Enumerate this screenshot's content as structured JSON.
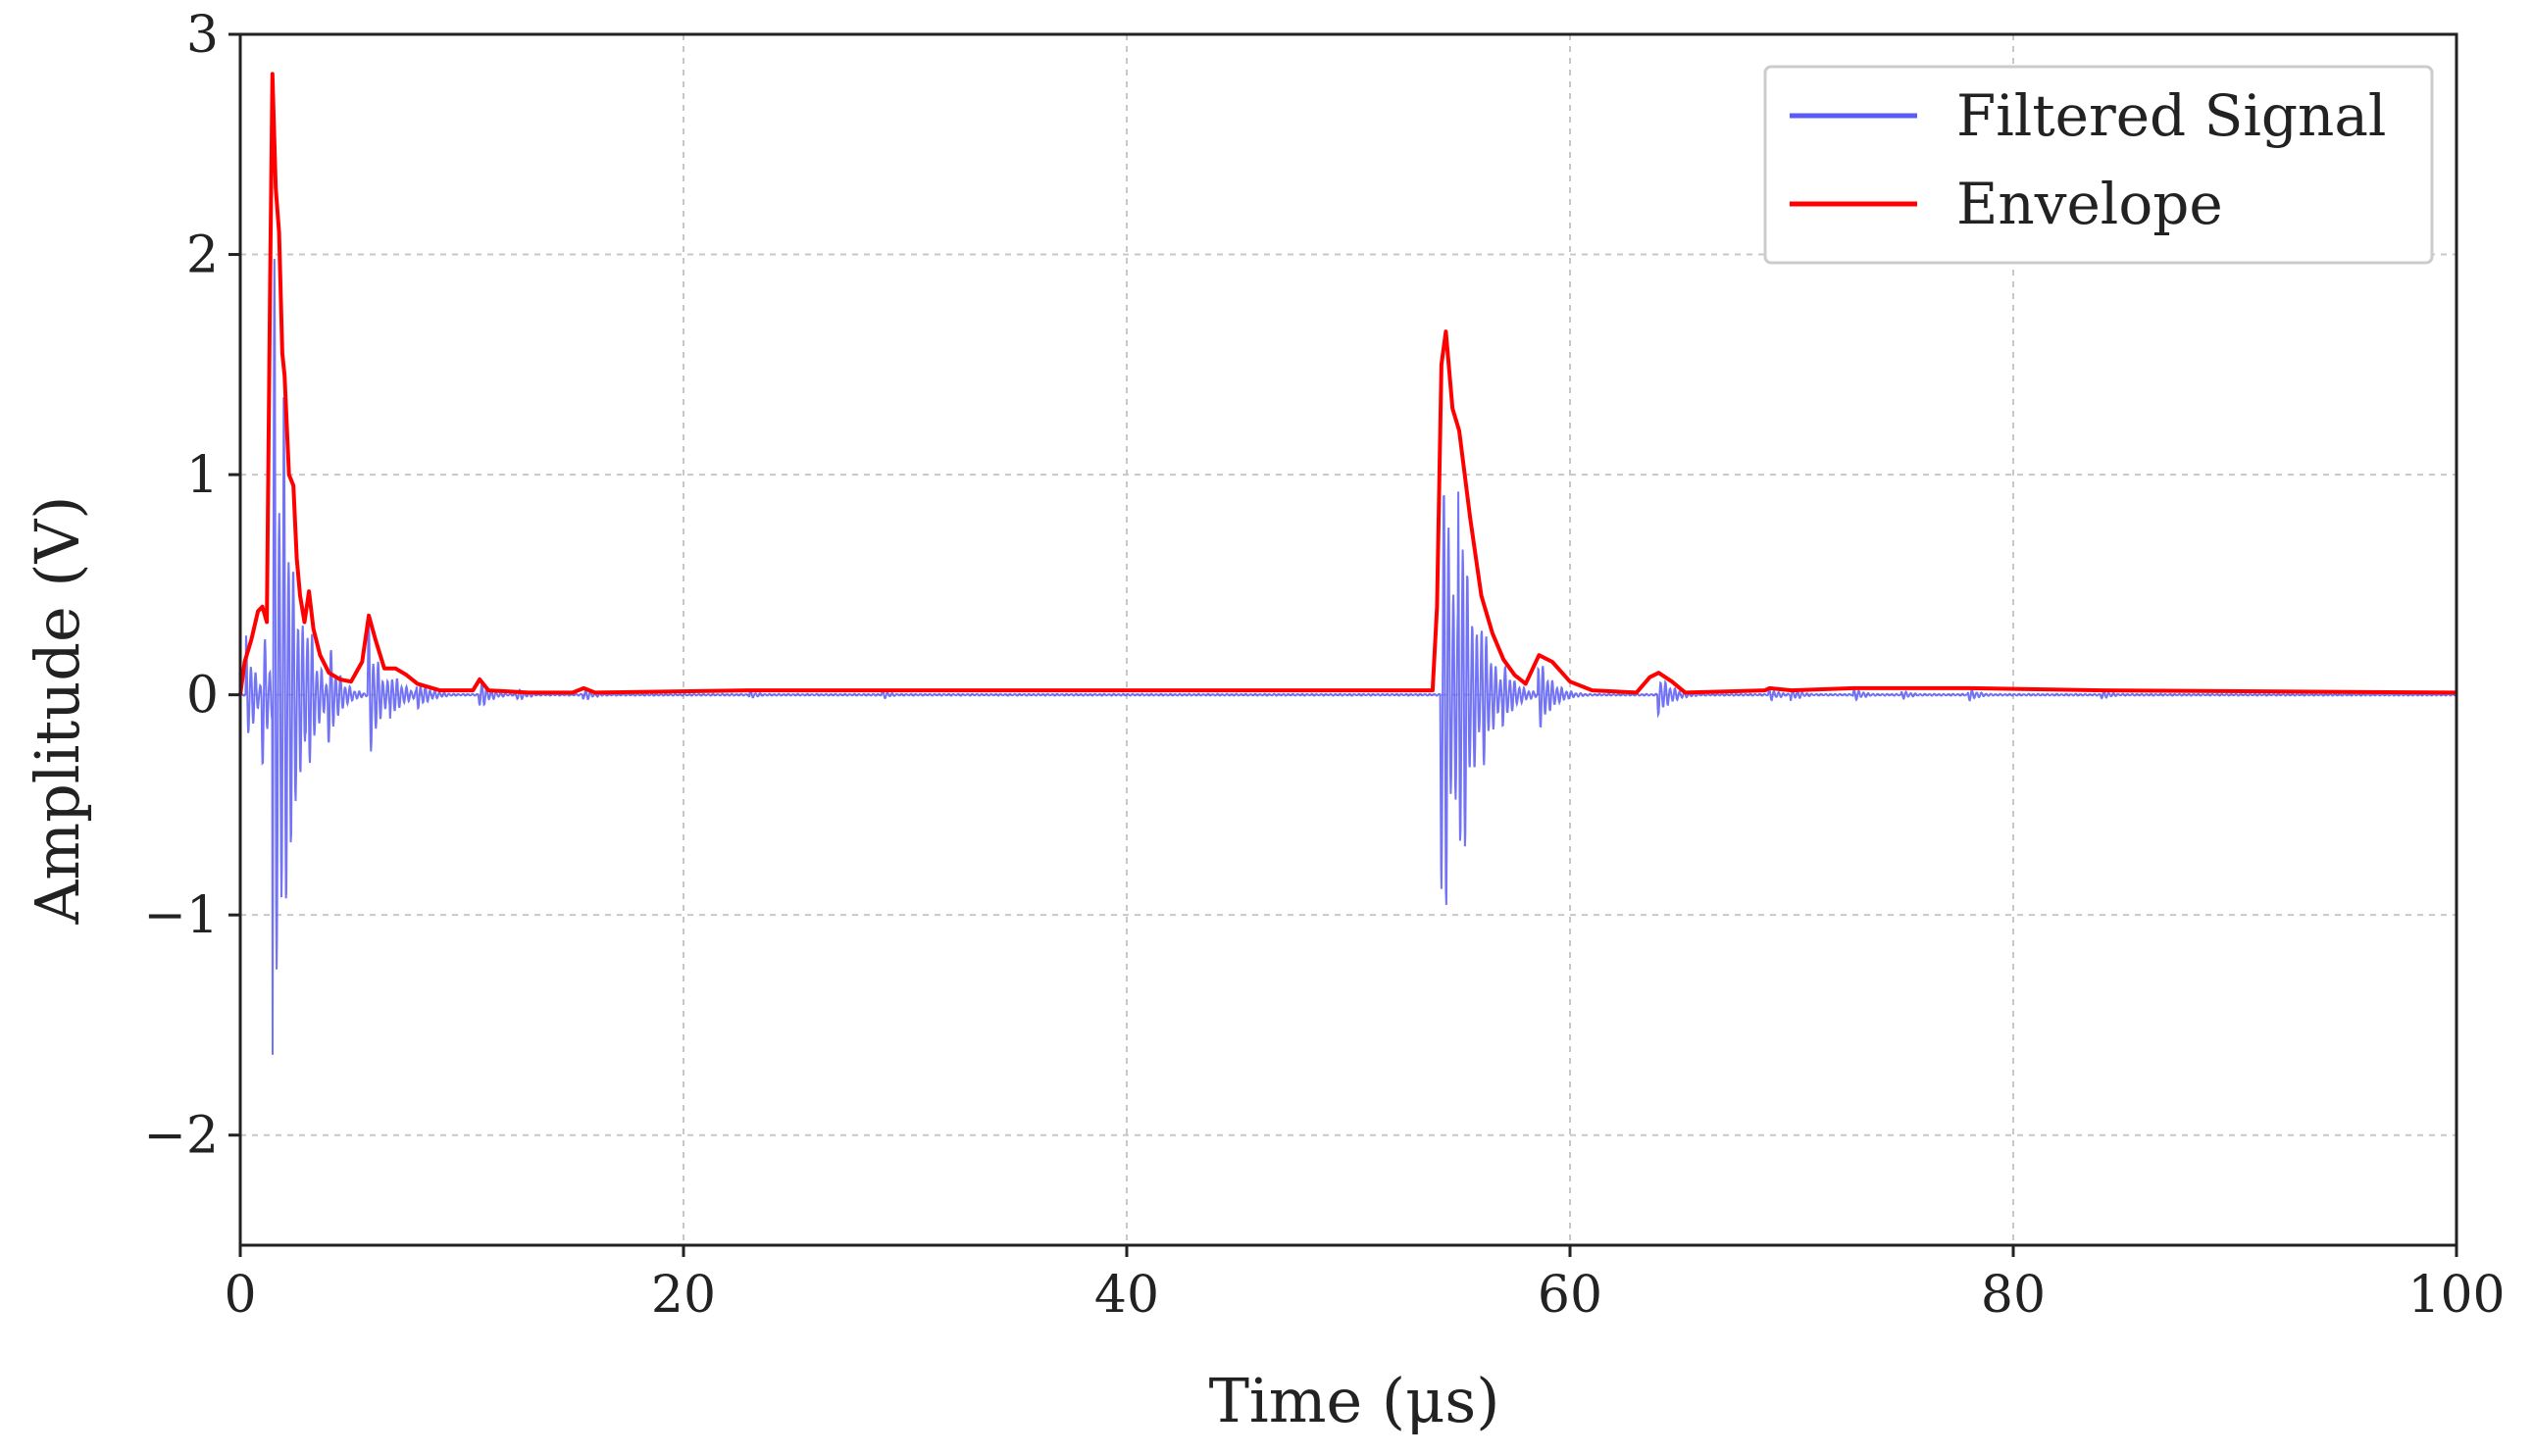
{
  "chart_data": {
    "type": "line",
    "xlabel": "Time (μs)",
    "ylabel": "Amplitude (V)",
    "xlim": [
      0,
      100
    ],
    "ylim": [
      -2.5,
      3
    ],
    "xticks": [
      0,
      20,
      40,
      60,
      80,
      100
    ],
    "yticks": [
      -2,
      -1,
      0,
      1,
      2,
      3
    ],
    "xtick_labels": [
      "0",
      "20",
      "40",
      "60",
      "80",
      "100"
    ],
    "ytick_labels": [
      "−2",
      "−1",
      "0",
      "1",
      "2",
      "3"
    ],
    "grid": true,
    "legend_position": "top-right",
    "series": [
      {
        "name": "Filtered Signal",
        "color": "#5b5bf5",
        "style": "oscillating",
        "bursts": [
          {
            "t": 0.3,
            "amp": 0.28,
            "decay": 0.4
          },
          {
            "t": 1.0,
            "amp": 0.35,
            "decay": 0.4
          },
          {
            "t": 1.5,
            "amp": 2.2,
            "decay": 0.45
          },
          {
            "t": 2.0,
            "amp": 1.4,
            "decay": 0.45
          },
          {
            "t": 2.5,
            "amp": 0.6,
            "decay": 0.5
          },
          {
            "t": 3.0,
            "amp": 0.45,
            "decay": 0.5
          },
          {
            "t": 4.0,
            "amp": 0.25,
            "decay": 0.5
          },
          {
            "t": 5.8,
            "amp": 0.35,
            "decay": 0.5
          },
          {
            "t": 6.8,
            "amp": 0.12,
            "decay": 0.6
          },
          {
            "t": 8.0,
            "amp": 0.07,
            "decay": 0.6
          },
          {
            "t": 10.8,
            "amp": 0.07,
            "decay": 0.5
          },
          {
            "t": 12.5,
            "amp": 0.03,
            "decay": 0.5
          },
          {
            "t": 15.5,
            "amp": 0.03,
            "decay": 0.5
          },
          {
            "t": 23.0,
            "amp": 0.02,
            "decay": 0.4
          },
          {
            "t": 29.0,
            "amp": 0.02,
            "decay": 0.4
          },
          {
            "t": 54.2,
            "amp": 1.4,
            "decay": 0.6
          },
          {
            "t": 55.0,
            "amp": 1.1,
            "decay": 0.6
          },
          {
            "t": 56.0,
            "amp": 0.4,
            "decay": 0.6
          },
          {
            "t": 57.0,
            "amp": 0.15,
            "decay": 0.6
          },
          {
            "t": 58.6,
            "amp": 0.18,
            "decay": 0.6
          },
          {
            "t": 64.0,
            "amp": 0.1,
            "decay": 0.6
          },
          {
            "t": 69.0,
            "amp": 0.03,
            "decay": 0.5
          },
          {
            "t": 70.0,
            "amp": 0.03,
            "decay": 0.5
          },
          {
            "t": 72.8,
            "amp": 0.03,
            "decay": 0.5
          },
          {
            "t": 75.0,
            "amp": 0.02,
            "decay": 0.5
          },
          {
            "t": 78.0,
            "amp": 0.03,
            "decay": 0.5
          },
          {
            "t": 84.0,
            "amp": 0.02,
            "decay": 0.5
          }
        ]
      },
      {
        "name": "Envelope",
        "color": "#ff0000",
        "points": [
          [
            0,
            0
          ],
          [
            0.2,
            0.15
          ],
          [
            0.5,
            0.25
          ],
          [
            0.8,
            0.38
          ],
          [
            1.0,
            0.4
          ],
          [
            1.2,
            0.33
          ],
          [
            1.35,
            1.9
          ],
          [
            1.45,
            2.82
          ],
          [
            1.6,
            2.3
          ],
          [
            1.75,
            2.1
          ],
          [
            1.9,
            1.55
          ],
          [
            2.0,
            1.45
          ],
          [
            2.2,
            1.0
          ],
          [
            2.4,
            0.95
          ],
          [
            2.55,
            0.62
          ],
          [
            2.7,
            0.45
          ],
          [
            2.9,
            0.33
          ],
          [
            3.1,
            0.47
          ],
          [
            3.3,
            0.3
          ],
          [
            3.6,
            0.18
          ],
          [
            4.0,
            0.1
          ],
          [
            4.5,
            0.07
          ],
          [
            5.0,
            0.06
          ],
          [
            5.5,
            0.15
          ],
          [
            5.8,
            0.36
          ],
          [
            6.1,
            0.25
          ],
          [
            6.5,
            0.12
          ],
          [
            7.0,
            0.12
          ],
          [
            7.5,
            0.09
          ],
          [
            8.0,
            0.05
          ],
          [
            9.0,
            0.02
          ],
          [
            10.5,
            0.02
          ],
          [
            10.8,
            0.07
          ],
          [
            11.2,
            0.02
          ],
          [
            13.0,
            0.01
          ],
          [
            15.0,
            0.01
          ],
          [
            15.5,
            0.03
          ],
          [
            16.0,
            0.01
          ],
          [
            23.0,
            0.02
          ],
          [
            29.0,
            0.02
          ],
          [
            53.8,
            0.02
          ],
          [
            54.0,
            0.4
          ],
          [
            54.2,
            1.5
          ],
          [
            54.4,
            1.65
          ],
          [
            54.7,
            1.3
          ],
          [
            55.0,
            1.2
          ],
          [
            55.5,
            0.8
          ],
          [
            56.0,
            0.45
          ],
          [
            56.5,
            0.28
          ],
          [
            57.0,
            0.16
          ],
          [
            57.5,
            0.09
          ],
          [
            58.0,
            0.05
          ],
          [
            58.6,
            0.18
          ],
          [
            59.2,
            0.15
          ],
          [
            60.0,
            0.06
          ],
          [
            61.0,
            0.02
          ],
          [
            63.0,
            0.01
          ],
          [
            63.6,
            0.08
          ],
          [
            64.0,
            0.1
          ],
          [
            64.6,
            0.06
          ],
          [
            65.2,
            0.01
          ],
          [
            68.8,
            0.02
          ],
          [
            69.0,
            0.03
          ],
          [
            70.0,
            0.02
          ],
          [
            72.8,
            0.03
          ],
          [
            78.0,
            0.03
          ],
          [
            84.0,
            0.02
          ],
          [
            100,
            0.01
          ]
        ]
      }
    ]
  }
}
